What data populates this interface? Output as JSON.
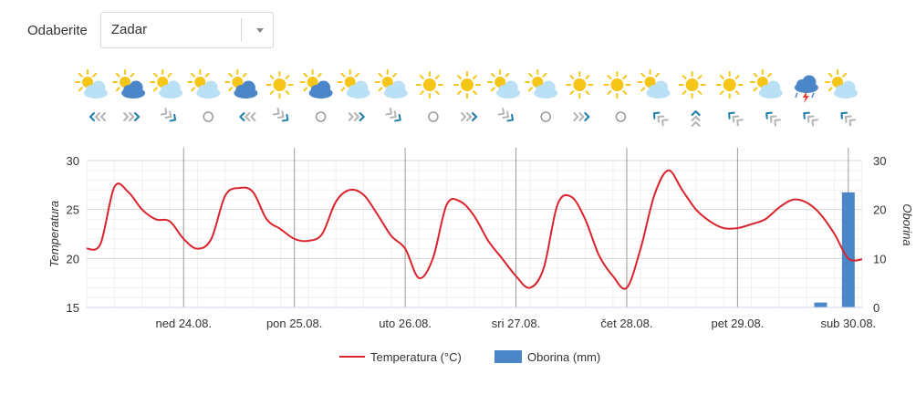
{
  "location_select": {
    "label": "Odaberite",
    "value": "Zadar"
  },
  "weather_icons": [
    "sun-cloud-icon",
    "sun-dark-cloud-icon",
    "sun-cloud-icon",
    "sun-cloud-icon",
    "sun-dark-cloud-icon",
    "sun-icon",
    "sun-dark-cloud-icon",
    "sun-cloud-icon",
    "sun-cloud-icon",
    "sun-icon",
    "sun-icon",
    "sun-cloud-icon",
    "sun-cloud-icon",
    "sun-icon",
    "sun-icon",
    "sun-cloud-icon",
    "sun-icon",
    "sun-icon",
    "sun-cloud-icon",
    "storm-cloud-icon",
    "sun-cloud-icon"
  ],
  "wind_icons": [
    "wind-west-icon",
    "wind-east-icon",
    "wind-southeast-icon",
    "calm-icon",
    "wind-west-icon",
    "wind-southeast-icon",
    "calm-icon",
    "wind-east-icon",
    "wind-southeast-icon",
    "calm-icon",
    "wind-east-icon",
    "wind-southeast-icon",
    "calm-icon",
    "wind-east-icon",
    "calm-icon",
    "wind-northwest-icon",
    "wind-north-icon",
    "wind-northwest-icon",
    "wind-northwest-icon",
    "wind-northwest-icon",
    "wind-northwest-icon"
  ],
  "colors": {
    "temperature": "#d9232d",
    "precipitation": "#4a86c8",
    "sun": "#f5c518",
    "cloud_light": "#b9e0f5",
    "cloud_dark": "#4a86c8",
    "wind_active": "#1a7ea8",
    "wind_inactive": "#b5b5b5"
  },
  "chart_data": {
    "type": "line",
    "xlabel": "",
    "ylabel": "Temperatura",
    "y2label": "Oborina",
    "ylim": [
      15,
      30
    ],
    "y2lim": [
      0,
      30
    ],
    "yticks": [
      15,
      20,
      25,
      30
    ],
    "y2ticks": [
      0,
      10,
      20,
      30
    ],
    "x_range": [
      0,
      28
    ],
    "x_unit": "3-hour step",
    "x_tick_labels": [
      "ned 24.08.",
      "pon 25.08.",
      "uto 26.08.",
      "sri 27.08.",
      "čet 28.08.",
      "pet 29.08.",
      "sub 30.08."
    ],
    "x_tick_positions": [
      3.5,
      7.5,
      11.5,
      15.5,
      19.5,
      23.5,
      27.5
    ],
    "grid": true,
    "legend_position": "bottom",
    "series": [
      {
        "name": "Temperatura (°C)",
        "type": "line",
        "axis": "left",
        "x": [
          0,
          0.5,
          1,
          1.5,
          2,
          2.5,
          3,
          3.5,
          4,
          4.5,
          5,
          5.5,
          6,
          6.5,
          7,
          7.5,
          8,
          8.5,
          9,
          9.5,
          10,
          10.5,
          11,
          11.5,
          12,
          12.5,
          13,
          13.5,
          14,
          14.5,
          15,
          15.5,
          16,
          16.5,
          17,
          17.5,
          18,
          18.5,
          19,
          19.5,
          20,
          20.5,
          21,
          21.5,
          22,
          22.5,
          23,
          23.5,
          24,
          24.5,
          25,
          25.5,
          26,
          26.5,
          27,
          27.5,
          28
        ],
        "values": [
          21,
          21.5,
          27.3,
          26.8,
          25,
          24,
          23.8,
          22,
          21,
          22,
          26.4,
          27.2,
          26.8,
          24,
          23,
          22,
          21.8,
          22.5,
          25.8,
          27,
          26.5,
          24.5,
          22.3,
          21,
          18,
          20,
          25.5,
          25.8,
          24.3,
          21.8,
          20,
          18.2,
          17,
          19,
          25.5,
          26.3,
          24,
          20.3,
          18.2,
          17,
          21,
          26.5,
          29,
          27,
          25,
          23.8,
          23.1,
          23.1,
          23.5,
          24,
          25.2,
          26,
          25.7,
          24.5,
          22.5,
          20,
          19.9
        ]
      },
      {
        "name": "Oborina (mm)",
        "type": "bar",
        "axis": "right",
        "x": [
          26.5,
          27.5
        ],
        "values": [
          1,
          23.5
        ]
      }
    ]
  }
}
